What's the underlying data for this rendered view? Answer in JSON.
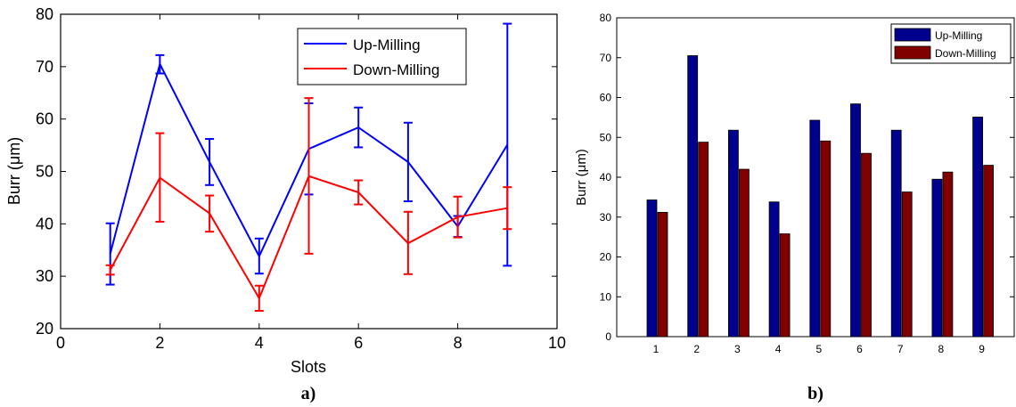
{
  "chart_data": [
    {
      "type": "line",
      "panel_label": "a)",
      "title": "",
      "xlabel": "Slots",
      "ylabel": "Burr (μm)",
      "xlim": [
        0,
        10
      ],
      "ylim": [
        20,
        80
      ],
      "xticks": [
        "0",
        "2",
        "4",
        "6",
        "8",
        "10"
      ],
      "yticks": [
        "20",
        "30",
        "40",
        "50",
        "60",
        "70",
        "80"
      ],
      "legend_position": "top-right",
      "x": [
        1,
        2,
        3,
        4,
        5,
        6,
        7,
        8,
        9
      ],
      "series": [
        {
          "name": "Up-Milling",
          "color": "#0000ff",
          "values": [
            34.3,
            70.5,
            51.8,
            33.8,
            54.3,
            58.4,
            51.8,
            39.5,
            55.1
          ],
          "error_low": [
            28.4,
            68.7,
            47.4,
            30.5,
            45.6,
            54.6,
            44.3,
            37.5,
            32.0
          ],
          "error_high": [
            40.1,
            72.2,
            56.2,
            37.2,
            63.0,
            62.2,
            59.3,
            41.5,
            78.2
          ]
        },
        {
          "name": "Down-Milling",
          "color": "#ff0000",
          "values": [
            31.2,
            48.8,
            42.0,
            25.8,
            49.1,
            46.0,
            36.3,
            41.3,
            43.0
          ],
          "error_low": [
            30.3,
            40.4,
            38.5,
            23.4,
            34.3,
            43.7,
            30.4,
            37.4,
            39.0
          ],
          "error_high": [
            32.1,
            57.3,
            45.4,
            28.2,
            64.0,
            48.3,
            42.3,
            45.2,
            47.0
          ]
        }
      ]
    },
    {
      "type": "bar",
      "panel_label": "b)",
      "title": "",
      "xlabel": "",
      "ylabel": "Burr (μm)",
      "ylim": [
        0,
        80
      ],
      "yticks": [
        "0",
        "10",
        "20",
        "30",
        "40",
        "50",
        "60",
        "70",
        "80"
      ],
      "categories": [
        "1",
        "2",
        "3",
        "4",
        "5",
        "6",
        "7",
        "8",
        "9"
      ],
      "legend_position": "top-right",
      "series": [
        {
          "name": "Up-Milling",
          "color": "#00008f",
          "values": [
            34.3,
            70.5,
            51.8,
            33.8,
            54.3,
            58.4,
            51.8,
            39.5,
            55.1
          ]
        },
        {
          "name": "Down-Milling",
          "color": "#800000",
          "values": [
            31.2,
            48.8,
            42.0,
            25.8,
            49.1,
            46.0,
            36.3,
            41.3,
            43.0
          ]
        }
      ]
    }
  ]
}
